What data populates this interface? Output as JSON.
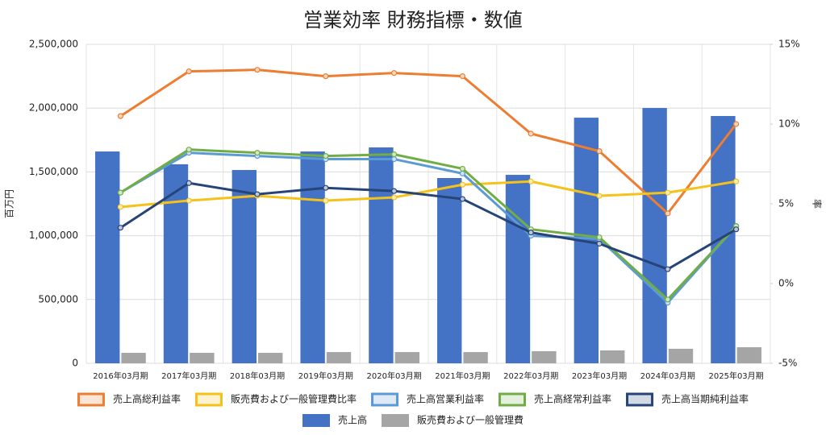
{
  "chart_data": {
    "type": "bar-line",
    "title": "営業効率 財務指標・数値",
    "y_label": "百万円",
    "y2_label": "率",
    "categories": [
      "2016年03月期",
      "2017年03月期",
      "2018年03月期",
      "2019年03月期",
      "2020年03月期",
      "2021年03月期",
      "2022年03月期",
      "2023年03月期",
      "2024年03月期",
      "2025年03月期"
    ],
    "ylim": [
      0,
      2500000
    ],
    "yticks": [
      0,
      {
        "value": 500000,
        "label": "500,000"
      },
      {
        "value": 1000000,
        "label": "1,000,000"
      },
      {
        "value": 1500000,
        "label": "1,500,000"
      },
      {
        "value": 2000000,
        "label": "2,000,000"
      },
      {
        "value": 2500000,
        "label": "2,500,000"
      }
    ],
    "y2lim": [
      -5,
      15
    ],
    "y2ticks": [
      {
        "value": -5,
        "label": "-5%"
      },
      {
        "value": 0,
        "label": "0%"
      },
      {
        "value": 5,
        "label": "5%"
      },
      {
        "value": 10,
        "label": "10%"
      },
      {
        "value": 15,
        "label": "15%"
      }
    ],
    "grid": true,
    "series": [
      {
        "name": "売上高総利益率",
        "type": "line",
        "axis": "y2",
        "color": "#ed7d31",
        "values": [
          10.5,
          13.3,
          13.4,
          13.0,
          13.2,
          13.0,
          9.4,
          8.3,
          4.4,
          10.0
        ]
      },
      {
        "name": "販売費および一般管理費比率",
        "type": "line",
        "axis": "y2",
        "color": "#f5c21b",
        "values": [
          4.8,
          5.2,
          5.5,
          5.2,
          5.4,
          6.2,
          6.4,
          5.5,
          5.7,
          6.4
        ]
      },
      {
        "name": "売上高営業利益率",
        "type": "line",
        "axis": "y2",
        "color": "#5b9bd5",
        "values": [
          5.7,
          8.2,
          8.0,
          7.8,
          7.8,
          6.9,
          3.0,
          2.8,
          -1.2,
          3.6
        ]
      },
      {
        "name": "売上高経常利益率",
        "type": "line",
        "axis": "y2",
        "color": "#70ad47",
        "values": [
          5.7,
          8.4,
          8.2,
          8.0,
          8.1,
          7.2,
          3.4,
          2.9,
          -1.0,
          3.6
        ]
      },
      {
        "name": "売上高当期純利益率",
        "type": "line",
        "axis": "y2",
        "color": "#264478",
        "values": [
          3.5,
          6.3,
          5.6,
          6.0,
          5.8,
          5.3,
          3.2,
          2.5,
          0.9,
          3.4
        ]
      },
      {
        "name": "売上高",
        "type": "bar",
        "color": "#4472c4",
        "values": [
          1660000,
          1560000,
          1515000,
          1660000,
          1692000,
          1452000,
          1477000,
          1925000,
          2001000,
          1938000
        ]
      },
      {
        "name": "販売費および一般管理費",
        "type": "bar",
        "color": "#a5a5a5",
        "values": [
          82000,
          82000,
          82000,
          88000,
          88000,
          88000,
          95000,
          101000,
          114000,
          126000
        ]
      }
    ]
  }
}
